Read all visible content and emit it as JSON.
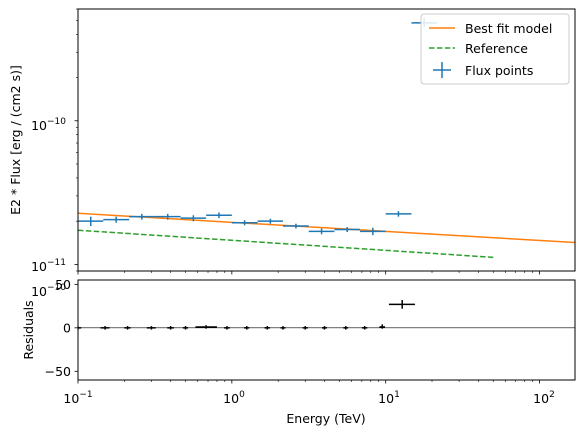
{
  "chart_data": [
    {
      "type": "scatter",
      "title": "",
      "xlabel": "",
      "ylabel": "E2 * Flux [erg / (cm2 s)]",
      "xscale": "log",
      "yscale": "log",
      "xlim": [
        0.1,
        170
      ],
      "ylim": [
        9e-12,
        6e-10
      ],
      "grid": false,
      "legend_position": "top-right",
      "y_ticks": [
        {
          "value": 1e-11,
          "mantissa": "10",
          "exponent": "−11"
        },
        {
          "value": 1e-10,
          "mantissa": "10",
          "exponent": "−10"
        }
      ],
      "x_ticks_labeled": [
        0.1,
        1,
        10,
        100
      ],
      "offset_text": {
        "mantissa": "10",
        "exponent": "−10"
      },
      "legend": {
        "model_label": "Best fit model",
        "reference_label": "Reference",
        "points_label": "Flux points"
      },
      "colors": {
        "points": "#1f77b4",
        "model": "#ff7f0e",
        "reference": "#2ca02c"
      },
      "series": [
        {
          "name": "Flux points",
          "kind": "errorbar",
          "points": [
            {
              "x": 0.121,
              "xlo": 0.1,
              "xhi": 0.146,
              "y": 2e-11,
              "ylo": 1.85e-11,
              "yhi": 2.15e-11
            },
            {
              "x": 0.177,
              "xlo": 0.146,
              "xhi": 0.215,
              "y": 2.05e-11,
              "ylo": 1.95e-11,
              "yhi": 2.15e-11
            },
            {
              "x": 0.26,
              "xlo": 0.215,
              "xhi": 0.316,
              "y": 2.15e-11,
              "ylo": 2.05e-11,
              "yhi": 2.25e-11
            },
            {
              "x": 0.383,
              "xlo": 0.316,
              "xhi": 0.464,
              "y": 2.15e-11,
              "ylo": 2.05e-11,
              "yhi": 2.25e-11
            },
            {
              "x": 0.562,
              "xlo": 0.464,
              "xhi": 0.681,
              "y": 2.1e-11,
              "ylo": 2e-11,
              "yhi": 2.2e-11
            },
            {
              "x": 0.825,
              "xlo": 0.681,
              "xhi": 1.0,
              "y": 2.2e-11,
              "ylo": 2.1e-11,
              "yhi": 2.3e-11
            },
            {
              "x": 1.21,
              "xlo": 1.0,
              "xhi": 1.47,
              "y": 1.95e-11,
              "ylo": 1.87e-11,
              "yhi": 2.03e-11
            },
            {
              "x": 1.78,
              "xlo": 1.47,
              "xhi": 2.15,
              "y": 2e-11,
              "ylo": 1.92e-11,
              "yhi": 2.08e-11
            },
            {
              "x": 2.61,
              "xlo": 2.15,
              "xhi": 3.16,
              "y": 1.85e-11,
              "ylo": 1.78e-11,
              "yhi": 1.92e-11
            },
            {
              "x": 3.83,
              "xlo": 3.16,
              "xhi": 4.64,
              "y": 1.7e-11,
              "ylo": 1.62e-11,
              "yhi": 1.78e-11
            },
            {
              "x": 5.62,
              "xlo": 4.64,
              "xhi": 6.81,
              "y": 1.75e-11,
              "ylo": 1.68e-11,
              "yhi": 1.82e-11
            },
            {
              "x": 8.25,
              "xlo": 6.81,
              "xhi": 10.0,
              "y": 1.7e-11,
              "ylo": 1.6e-11,
              "yhi": 1.8e-11
            },
            {
              "x": 12.1,
              "xlo": 10.0,
              "xhi": 14.7,
              "y": 2.25e-11,
              "ylo": 2.15e-11,
              "yhi": 2.35e-11
            },
            {
              "x": 17.8,
              "xlo": 14.7,
              "xhi": 21.5,
              "y": 4.8e-10,
              "ylo": 4.5e-10,
              "yhi": 5.2e-10
            }
          ]
        },
        {
          "name": "Best fit model",
          "kind": "line",
          "x": [
            0.1,
            170
          ],
          "y": [
            2.27e-11,
            1.42e-11
          ]
        },
        {
          "name": "Reference",
          "kind": "dashed-line",
          "x": [
            0.1,
            50
          ],
          "y": [
            1.73e-11,
            1.12e-11
          ]
        }
      ]
    },
    {
      "type": "scatter",
      "title": "",
      "xlabel": "Energy (TeV)",
      "ylabel": "Residuals",
      "xscale": "log",
      "xlim": [
        0.1,
        170
      ],
      "ylim": [
        -60,
        55
      ],
      "grid": false,
      "y_ticks": [
        -50,
        0,
        50
      ],
      "x_ticks": [
        {
          "value": 0.1,
          "mantissa": "10",
          "exponent": "−1"
        },
        {
          "value": 1,
          "mantissa": "10",
          "exponent": "0"
        },
        {
          "value": 10,
          "mantissa": "10",
          "exponent": "1"
        },
        {
          "value": 100,
          "mantissa": "10",
          "exponent": "2"
        }
      ],
      "reference_line": 0,
      "series": [
        {
          "name": "Residuals",
          "kind": "errorbar",
          "color": "#000000",
          "points": [
            {
              "x": 0.1,
              "xlo": 0.1,
              "xhi": 0.105,
              "y": 0,
              "ylo": -2,
              "yhi": 2
            },
            {
              "x": 0.15,
              "xlo": 0.14,
              "xhi": 0.16,
              "y": 0,
              "ylo": -2,
              "yhi": 2
            },
            {
              "x": 0.21,
              "xlo": 0.2,
              "xhi": 0.22,
              "y": 0,
              "ylo": -2,
              "yhi": 2
            },
            {
              "x": 0.3,
              "xlo": 0.28,
              "xhi": 0.32,
              "y": 0,
              "ylo": -2,
              "yhi": 2
            },
            {
              "x": 0.4,
              "xlo": 0.38,
              "xhi": 0.42,
              "y": 0,
              "ylo": -2,
              "yhi": 2
            },
            {
              "x": 0.5,
              "xlo": 0.48,
              "xhi": 0.52,
              "y": 0,
              "ylo": -2,
              "yhi": 2
            },
            {
              "x": 0.68,
              "xlo": 0.58,
              "xhi": 0.8,
              "y": 1,
              "ylo": -1,
              "yhi": 3
            },
            {
              "x": 0.93,
              "xlo": 0.89,
              "xhi": 0.97,
              "y": 0,
              "ylo": -2,
              "yhi": 2
            },
            {
              "x": 1.25,
              "xlo": 1.2,
              "xhi": 1.3,
              "y": 0,
              "ylo": -2,
              "yhi": 2
            },
            {
              "x": 1.7,
              "xlo": 1.63,
              "xhi": 1.77,
              "y": 0,
              "ylo": -2,
              "yhi": 2
            },
            {
              "x": 2.15,
              "xlo": 2.07,
              "xhi": 2.23,
              "y": 0,
              "ylo": -2,
              "yhi": 2
            },
            {
              "x": 3.0,
              "xlo": 2.88,
              "xhi": 3.12,
              "y": 0,
              "ylo": -2,
              "yhi": 2
            },
            {
              "x": 4.0,
              "xlo": 3.85,
              "xhi": 4.15,
              "y": 0,
              "ylo": -2,
              "yhi": 2
            },
            {
              "x": 5.5,
              "xlo": 5.3,
              "xhi": 5.7,
              "y": 0,
              "ylo": -2,
              "yhi": 2
            },
            {
              "x": 7.3,
              "xlo": 7.0,
              "xhi": 7.6,
              "y": 0,
              "ylo": -2,
              "yhi": 2
            },
            {
              "x": 9.5,
              "xlo": 9.1,
              "xhi": 9.9,
              "y": 1,
              "ylo": -1,
              "yhi": 4
            },
            {
              "x": 12.8,
              "xlo": 10.5,
              "xhi": 15.5,
              "y": 27,
              "ylo": 22,
              "yhi": 32
            }
          ]
        }
      ]
    }
  ]
}
